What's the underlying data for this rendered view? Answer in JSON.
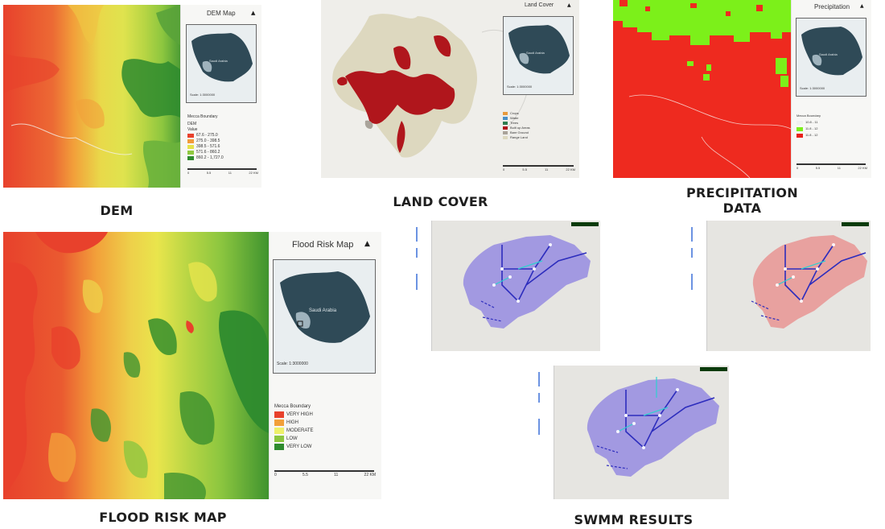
{
  "captions": {
    "dem": "DEM",
    "land_cover": "LAND COVER",
    "precip_line1": "PRECIPITATION",
    "precip_line2": "DATA",
    "flood": "FLOOD RISK MAP",
    "swmm": "SWMM RESULTS"
  },
  "dem": {
    "title": "DEM Map",
    "inset_label": "Saudi Arabia",
    "scale": "Scale: 1:3000000",
    "boundary": "Mecca Boundary",
    "legend_title_1": "DEM",
    "legend_title_2": "Value",
    "legend": [
      {
        "label": "67.6 - 275.0",
        "color": "#e8412c"
      },
      {
        "label": "275.0 - 398.5",
        "color": "#f29b3a"
      },
      {
        "label": "398.5 - 571.6",
        "color": "#e6e24a"
      },
      {
        "label": "571.6 - 860.2",
        "color": "#8fc93f"
      },
      {
        "label": "860.2 - 1,727.0",
        "color": "#2e8b2e"
      }
    ],
    "scalebar": [
      "0",
      "5.5",
      "11",
      "22 KM"
    ],
    "north": "▲"
  },
  "land_cover": {
    "title": "Land Cover",
    "inset_label": "Saudi Arabia",
    "scale": "Scale: 1:3000000",
    "legend": [
      {
        "label": "Crops",
        "color": "#e89a3c"
      },
      {
        "label": "Water",
        "color": "#4a90c8"
      },
      {
        "label": "Trees",
        "color": "#2e7d4f"
      },
      {
        "label": "Built up Areas",
        "color": "#b0161c"
      },
      {
        "label": "Bare Ground",
        "color": "#a9a39a"
      },
      {
        "label": "Range Land",
        "color": "#ddd8bf"
      }
    ],
    "scalebar": [
      "0",
      "5.5",
      "11",
      "22 KM"
    ],
    "north": "▲"
  },
  "precipitation": {
    "title": "Precipitation",
    "inset_label": "Saudi Arabia",
    "scale": "Scale: 1:3000000",
    "legend_title": "Mecca Boundary",
    "legend": [
      {
        "label": "10.8 - 11",
        "color": "#f0f0f0"
      },
      {
        "label": "11.8 - 12",
        "color": "#7cf01a"
      },
      {
        "label": "11.8 - 12",
        "color": "#e8201a"
      }
    ],
    "scalebar": [
      "0",
      "5.5",
      "11",
      "22 KM"
    ],
    "north": "▲"
  },
  "flood": {
    "title": "Flood Risk Map",
    "inset_label": "Saudi Arabia",
    "scale": "Scale: 1:3000000",
    "legend_title": "Mecca Boundary",
    "legend": [
      {
        "label": "VERY HIGH",
        "color": "#e8412c"
      },
      {
        "label": "HIGH",
        "color": "#f2a03a"
      },
      {
        "label": "MODERATE",
        "color": "#eef06a"
      },
      {
        "label": "LOW",
        "color": "#8cc63f"
      },
      {
        "label": "VERY LOW",
        "color": "#2e8b2e"
      }
    ],
    "scalebar": [
      "0",
      "5.5",
      "11",
      "22 KM"
    ],
    "north": "▲"
  },
  "colors": {
    "dem_red": "#e8412c",
    "dem_orange": "#f2a03a",
    "dem_yellow": "#e9e54c",
    "dem_green": "#8cc63f",
    "dem_dark": "#2e8b2e",
    "built_up": "#b0161c",
    "range_land": "#ddd8bf",
    "precip_red": "#ee2a1f",
    "precip_green": "#7cf01a",
    "swmm_purple": "#8b7fe0",
    "swmm_red": "#e88a88",
    "inset_land": "#2f4a57"
  }
}
